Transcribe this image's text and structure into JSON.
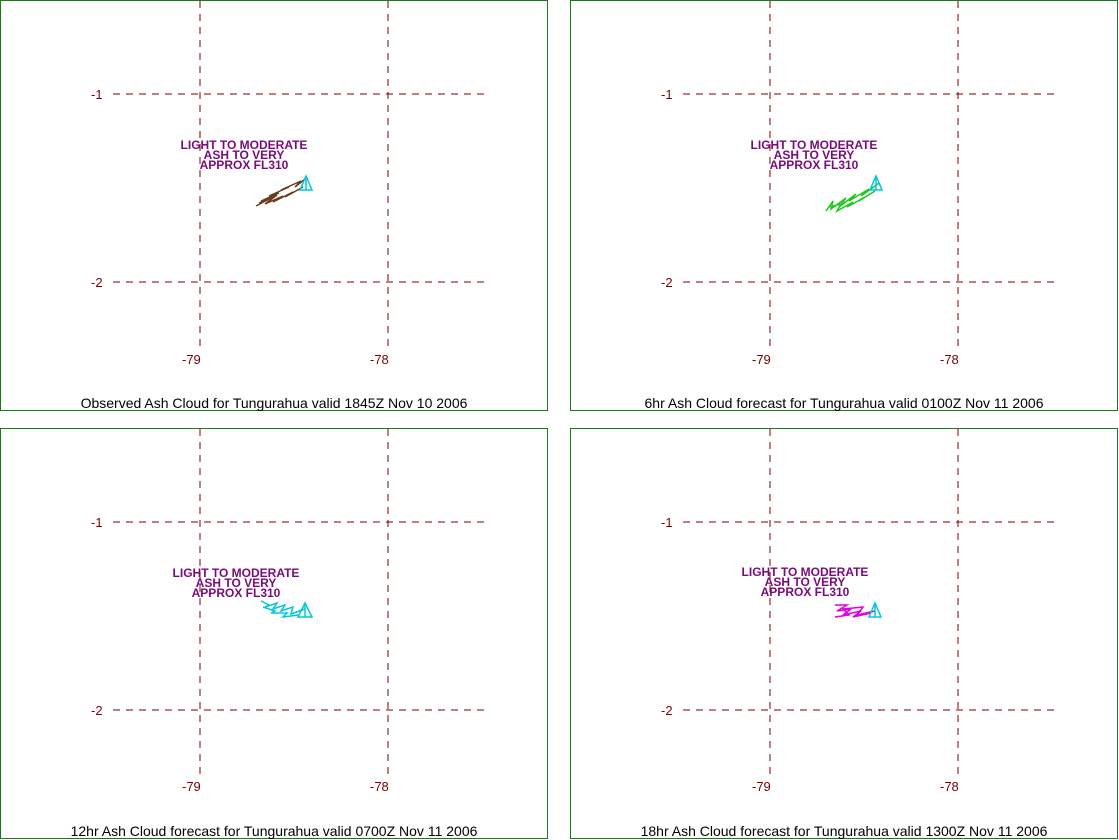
{
  "panels": [
    {
      "caption": "Observed Ash Cloud for Tungurahua valid 1845Z Nov 10 2006",
      "lat_ticks": [
        "-1",
        "-2"
      ],
      "lon_ticks": [
        "-79",
        "-78"
      ],
      "annotation": [
        "LIGHT TO MODERATE",
        "ASH TO VERY",
        "APPROX FL310"
      ],
      "cloud_color": "#6b3a1e",
      "volcano_color": "#00c8d8"
    },
    {
      "caption": "6hr Ash Cloud forecast for Tungurahua valid 0100Z Nov 11 2006",
      "lat_ticks": [
        "-1",
        "-2"
      ],
      "lon_ticks": [
        "-79",
        "-78"
      ],
      "annotation": [
        "LIGHT TO MODERATE",
        "ASH TO VERY",
        "APPROX FL310"
      ],
      "cloud_color": "#1ec81e",
      "volcano_color": "#00c8d8"
    },
    {
      "caption": "12hr Ash Cloud forecast for Tungurahua valid 0700Z Nov 11 2006",
      "lat_ticks": [
        "-1",
        "-2"
      ],
      "lon_ticks": [
        "-79",
        "-78"
      ],
      "annotation": [
        "LIGHT TO MODERATE",
        "ASH TO VERY",
        "APPROX FL310"
      ],
      "cloud_color": "#00c8d8",
      "volcano_color": "#00c8d8"
    },
    {
      "caption": "18hr Ash Cloud forecast for Tungurahua valid 1300Z Nov 11 2006",
      "lat_ticks": [
        "-1",
        "-2"
      ],
      "lon_ticks": [
        "-79",
        "-78"
      ],
      "annotation": [
        "LIGHT TO MODERATE",
        "ASH TO VERY",
        "APPROX FL310"
      ],
      "cloud_color": "#e000e0",
      "volcano_color": "#00c8d8"
    }
  ]
}
